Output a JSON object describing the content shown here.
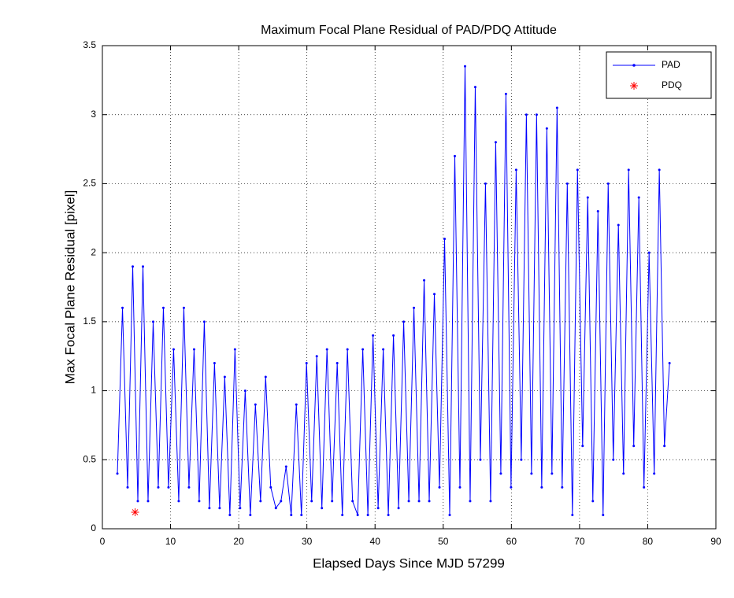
{
  "chart_data": {
    "type": "line",
    "title": "Maximum Focal Plane Residual of PAD/PDQ Attitude",
    "x_label": "Elapsed Days Since MJD 57299",
    "y_label": "Max Focal Plane Residual [pixel]",
    "xlim": [
      0,
      90
    ],
    "xticks": [
      0,
      10,
      20,
      30,
      40,
      50,
      60,
      70,
      80,
      90
    ],
    "ylim": [
      0,
      3.5
    ],
    "yticks": [
      0,
      0.5,
      1,
      1.5,
      2,
      2.5,
      3,
      3.5
    ],
    "grid": true,
    "legend_position": "upper-right",
    "series": [
      {
        "name": "PAD",
        "color": "#0000ff",
        "x": [
          2.2,
          2.95,
          3.7,
          4.45,
          5.2,
          5.95,
          6.7,
          7.45,
          8.2,
          8.95,
          9.7,
          10.45,
          11.2,
          11.95,
          12.7,
          13.45,
          14.2,
          14.95,
          15.7,
          16.45,
          17.2,
          17.95,
          18.7,
          19.45,
          20.2,
          20.95,
          21.7,
          22.45,
          23.2,
          23.95,
          24.7,
          25.45,
          26.2,
          26.95,
          27.7,
          28.45,
          29.2,
          29.95,
          30.7,
          31.45,
          32.2,
          32.95,
          33.7,
          34.45,
          35.2,
          35.95,
          36.7,
          37.45,
          38.2,
          38.95,
          39.7,
          40.45,
          41.2,
          41.95,
          42.7,
          43.45,
          44.2,
          44.95,
          45.7,
          46.45,
          47.2,
          47.95,
          48.7,
          49.45,
          50.2,
          50.95,
          51.7,
          52.45,
          53.2,
          53.95,
          54.7,
          55.45,
          56.2,
          56.95,
          57.7,
          58.45,
          59.2,
          59.95,
          60.7,
          61.45,
          62.2,
          62.95,
          63.7,
          64.45,
          65.2,
          65.95,
          66.7,
          67.45,
          68.2,
          68.95,
          69.7,
          70.45,
          71.2,
          71.95,
          72.7,
          73.45,
          74.2,
          74.95,
          75.7,
          76.45,
          77.2,
          77.95,
          78.7,
          79.45,
          80.2,
          80.95,
          81.7,
          82.45,
          83.2
        ],
        "values": [
          0.4,
          1.6,
          0.3,
          1.9,
          0.2,
          1.9,
          0.2,
          1.5,
          0.3,
          1.6,
          0.3,
          1.3,
          0.2,
          1.6,
          0.3,
          1.3,
          0.2,
          1.5,
          0.15,
          1.2,
          0.15,
          1.1,
          0.1,
          1.3,
          0.15,
          1.0,
          0.1,
          0.9,
          0.2,
          1.1,
          0.3,
          0.15,
          0.2,
          0.45,
          0.1,
          0.9,
          0.1,
          1.2,
          0.2,
          1.25,
          0.15,
          1.3,
          0.2,
          1.2,
          0.1,
          1.3,
          0.2,
          0.1,
          1.3,
          0.1,
          1.4,
          0.15,
          1.3,
          0.1,
          1.4,
          0.15,
          1.5,
          0.2,
          1.6,
          0.2,
          1.8,
          0.2,
          1.7,
          0.3,
          2.1,
          0.1,
          2.7,
          0.3,
          3.35,
          0.2,
          3.2,
          0.5,
          2.5,
          0.2,
          2.8,
          0.4,
          3.15,
          0.3,
          2.6,
          0.5,
          3.0,
          0.4,
          3.0,
          0.3,
          2.9,
          0.4,
          3.05,
          0.3,
          2.5,
          0.1,
          2.6,
          0.6,
          2.4,
          0.2,
          2.3,
          0.1,
          2.5,
          0.5,
          2.2,
          0.4,
          2.6,
          0.6,
          2.4,
          0.3,
          2.0,
          0.4,
          2.6,
          0.6,
          1.2
        ]
      },
      {
        "name": "PDQ",
        "color": "#ff0000",
        "x": [
          4.8
        ],
        "values": [
          0.12
        ]
      }
    ]
  }
}
